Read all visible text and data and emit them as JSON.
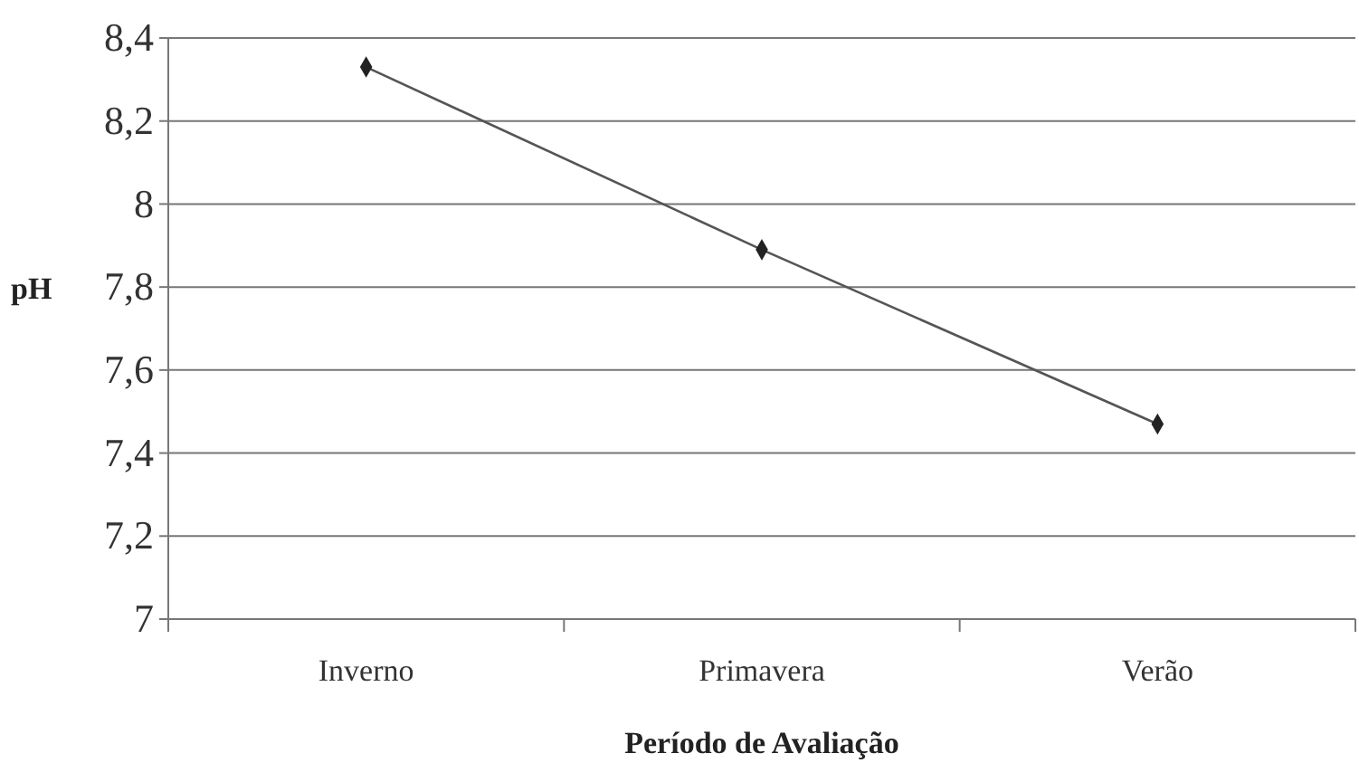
{
  "chart_data": {
    "type": "line",
    "xlabel": "Período de Avaliação",
    "ylabel": "pH",
    "categories": [
      "Inverno",
      "Primavera",
      "Verão"
    ],
    "series": [
      {
        "color": "#555555",
        "values": [
          8.33,
          7.89,
          7.47
        ]
      }
    ],
    "ylim": [
      7,
      8.4
    ],
    "yticks": [
      {
        "value": 7,
        "label": "7"
      },
      {
        "value": 7.2,
        "label": "7,2"
      },
      {
        "value": 7.4,
        "label": "7,4"
      },
      {
        "value": 7.6,
        "label": "7,6"
      },
      {
        "value": 7.8,
        "label": "7,8"
      },
      {
        "value": 8,
        "label": "8"
      },
      {
        "value": 8.2,
        "label": "8,2"
      },
      {
        "value": 8.4,
        "label": "8,4"
      }
    ],
    "grid": "y",
    "marker": "diamond",
    "line_style": "solid"
  }
}
